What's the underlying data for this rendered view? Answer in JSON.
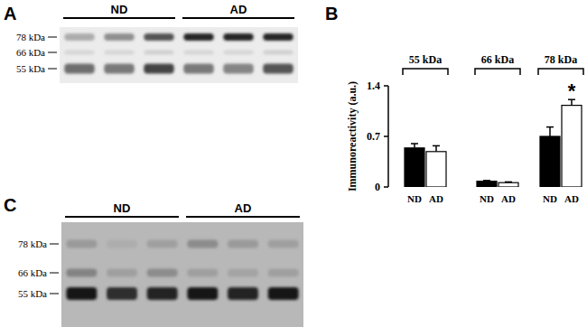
{
  "panel_labels": [
    "A",
    "B",
    "C"
  ],
  "blots": [
    {
      "groups": [
        {
          "label": "ND",
          "lanes": 3
        },
        {
          "label": "AD",
          "lanes": 3
        }
      ],
      "markers": [
        "78 kDa",
        "66 kDa",
        "55 kDa"
      ],
      "bands": [
        [
          0.45,
          0.6,
          0.85,
          1,
          1,
          1
        ],
        [
          0.15,
          0.15,
          0.2,
          0.15,
          0.15,
          0.2
        ],
        [
          0.75,
          0.7,
          0.9,
          0.7,
          0.65,
          0.85
        ]
      ]
    },
    {
      "groups": [
        {
          "label": "ND",
          "lanes": 3
        },
        {
          "label": "AD",
          "lanes": 3
        }
      ],
      "markers": [
        "78 kDa",
        "66 kDa",
        "55 kDa"
      ],
      "bands": [
        [
          0.35,
          0.15,
          0.3,
          0.45,
          0.35,
          0.3
        ],
        [
          0.5,
          0.3,
          0.45,
          0.3,
          0.25,
          0.3
        ],
        [
          1,
          0.9,
          0.95,
          1,
          0.95,
          1
        ]
      ]
    }
  ],
  "chart_data": {
    "type": "bar",
    "categories": [
      "55 kDa",
      "66 kDa",
      "78 kDa"
    ],
    "series": [
      {
        "name": "ND",
        "color": "#000000",
        "values": [
          0.54,
          0.08,
          0.7
        ],
        "errors": [
          0.06,
          0.01,
          0.13
        ]
      },
      {
        "name": "AD",
        "color": "#ffffff",
        "values": [
          0.49,
          0.06,
          1.13
        ],
        "errors": [
          0.08,
          0.01,
          0.08
        ]
      }
    ],
    "y_label": "Immunoreactivity (a.u.)",
    "ylim": [
      0,
      1.4
    ],
    "yticks": [
      0,
      0.7,
      1.4
    ],
    "annotations": [
      {
        "text": "*",
        "category": "78 kDa",
        "series": "AD"
      }
    ]
  }
}
